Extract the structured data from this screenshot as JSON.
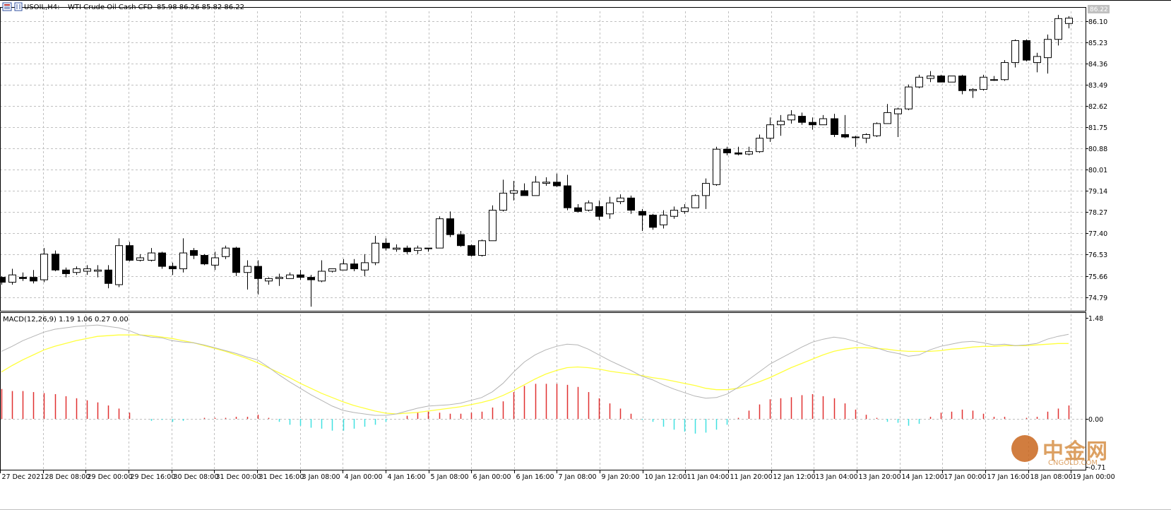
{
  "header": {
    "symbol": "USOIL,H4:",
    "description": "WTI Crude Oil Cash CFD",
    "ohlc": "85.98 86.26 85.82 86.22"
  },
  "current_price_tag": "86.22",
  "macd_label": "MACD(12,26,9) 1.19 1.06 0.27 0.00",
  "watermark": {
    "name": "中金网",
    "domain": "CNGOLD.COM"
  },
  "colors": {
    "background": "#ffffff",
    "grid": "#c0c0c0",
    "candle_outline": "#000000",
    "bull_body": "#ffffff",
    "bear_body": "#000000",
    "macd_line": "#b4b4b4",
    "signal_line": "#ffff3c",
    "hist_positive": "#e03030",
    "hist_negative": "#40e0e0"
  },
  "chart_data": [
    {
      "type": "candlestick",
      "title": "USOIL,H4: WTI Crude Oil Cash CFD",
      "y_ticks": [
        "86.10",
        "85.23",
        "84.36",
        "83.49",
        "82.62",
        "81.75",
        "80.88",
        "80.01",
        "79.14",
        "78.27",
        "77.40",
        "76.53",
        "75.66",
        "74.79"
      ],
      "ylim": [
        74.2,
        86.5
      ],
      "x_ticks": [
        "27 Dec 2021",
        "28 Dec 08:00",
        "29 Dec 00:00",
        "29 Dec 16:00",
        "30 Dec 08:00",
        "31 Dec 00:00",
        "31 Dec 16:00",
        "3 Jan 08:00",
        "4 Jan 00:00",
        "4 Jan 16:00",
        "5 Jan 08:00",
        "6 Jan 00:00",
        "6 Jan 16:00",
        "7 Jan 08:00",
        "9 Jan 20:00",
        "10 Jan 12:00",
        "11 Jan 04:00",
        "11 Jan 20:00",
        "12 Jan 12:00",
        "13 Jan 04:00",
        "13 Jan 20:00",
        "14 Jan 12:00",
        "17 Jan 00:00",
        "17 Jan 16:00",
        "18 Jan 08:00",
        "19 Jan 00:00"
      ],
      "grid": true,
      "ohlc": [
        [
          75.6,
          75.65,
          75.3,
          75.4
        ],
        [
          75.4,
          75.95,
          75.3,
          75.7
        ],
        [
          75.6,
          75.8,
          75.45,
          75.55
        ],
        [
          75.6,
          75.9,
          75.35,
          75.45
        ],
        [
          75.5,
          76.8,
          75.4,
          76.55
        ],
        [
          76.55,
          76.7,
          75.85,
          75.9
        ],
        [
          75.9,
          76.0,
          75.6,
          75.75
        ],
        [
          75.8,
          76.05,
          75.7,
          75.95
        ],
        [
          75.85,
          76.1,
          75.7,
          75.95
        ],
        [
          75.85,
          76.1,
          75.6,
          75.9
        ],
        [
          75.9,
          76.1,
          75.15,
          75.35
        ],
        [
          75.3,
          77.2,
          75.2,
          76.9
        ],
        [
          76.9,
          77.05,
          76.25,
          76.3
        ],
        [
          76.3,
          76.55,
          76.25,
          76.4
        ],
        [
          76.3,
          76.8,
          76.25,
          76.6
        ],
        [
          76.6,
          76.65,
          75.95,
          76.05
        ],
        [
          76.05,
          76.2,
          75.7,
          75.95
        ],
        [
          75.95,
          77.2,
          75.8,
          76.6
        ],
        [
          76.7,
          76.8,
          76.35,
          76.5
        ],
        [
          76.5,
          76.55,
          76.1,
          76.15
        ],
        [
          76.1,
          76.65,
          75.9,
          76.4
        ],
        [
          76.45,
          76.9,
          76.35,
          76.8
        ],
        [
          76.8,
          76.85,
          75.65,
          75.8
        ],
        [
          75.8,
          76.3,
          75.1,
          76.05
        ],
        [
          76.05,
          76.3,
          74.9,
          75.55
        ],
        [
          75.45,
          75.6,
          75.3,
          75.55
        ],
        [
          75.55,
          75.75,
          75.25,
          75.6
        ],
        [
          75.55,
          75.8,
          75.55,
          75.7
        ],
        [
          75.7,
          75.9,
          75.5,
          75.6
        ],
        [
          75.6,
          75.7,
          74.4,
          75.5
        ],
        [
          75.45,
          76.3,
          75.4,
          75.85
        ],
        [
          75.85,
          75.95,
          75.8,
          75.95
        ],
        [
          75.9,
          76.35,
          75.9,
          76.15
        ],
        [
          76.15,
          76.35,
          75.85,
          75.95
        ],
        [
          75.9,
          76.55,
          75.65,
          76.2
        ],
        [
          76.2,
          77.3,
          76.1,
          77.0
        ],
        [
          77.0,
          77.2,
          76.7,
          76.8
        ],
        [
          76.75,
          76.95,
          76.65,
          76.8
        ],
        [
          76.8,
          76.9,
          76.55,
          76.65
        ],
        [
          76.7,
          76.9,
          76.55,
          76.8
        ],
        [
          76.8,
          76.8,
          76.65,
          76.8
        ],
        [
          76.8,
          78.1,
          76.8,
          78.0
        ],
        [
          78.0,
          78.3,
          77.25,
          77.35
        ],
        [
          77.35,
          77.5,
          76.85,
          76.9
        ],
        [
          76.9,
          76.95,
          76.45,
          76.5
        ],
        [
          76.5,
          77.15,
          76.45,
          77.1
        ],
        [
          77.1,
          78.55,
          77.1,
          78.35
        ],
        [
          78.35,
          79.6,
          78.3,
          79.05
        ],
        [
          79.05,
          79.55,
          78.75,
          79.15
        ],
        [
          79.15,
          79.45,
          78.95,
          78.95
        ],
        [
          78.95,
          79.75,
          78.95,
          79.5
        ],
        [
          79.45,
          79.7,
          79.35,
          79.5
        ],
        [
          79.5,
          79.85,
          79.3,
          79.35
        ],
        [
          79.35,
          79.8,
          78.35,
          78.45
        ],
        [
          78.45,
          78.6,
          78.25,
          78.3
        ],
        [
          78.35,
          78.75,
          78.3,
          78.65
        ],
        [
          78.5,
          78.75,
          77.95,
          78.1
        ],
        [
          78.2,
          78.9,
          78.0,
          78.65
        ],
        [
          78.7,
          79.0,
          78.6,
          78.85
        ],
        [
          78.85,
          78.95,
          78.2,
          78.35
        ],
        [
          78.3,
          78.4,
          77.5,
          78.15
        ],
        [
          78.15,
          78.2,
          77.55,
          77.65
        ],
        [
          77.75,
          78.35,
          77.6,
          78.15
        ],
        [
          78.1,
          78.5,
          78.0,
          78.35
        ],
        [
          78.3,
          78.6,
          78.2,
          78.45
        ],
        [
          78.45,
          79.0,
          78.45,
          78.95
        ],
        [
          78.95,
          79.65,
          78.4,
          79.45
        ],
        [
          79.4,
          80.95,
          79.35,
          80.85
        ],
        [
          80.85,
          80.95,
          80.6,
          80.7
        ],
        [
          80.7,
          80.95,
          80.6,
          80.65
        ],
        [
          80.65,
          80.95,
          80.6,
          80.75
        ],
        [
          80.75,
          81.45,
          80.7,
          81.3
        ],
        [
          81.3,
          82.15,
          81.15,
          81.85
        ],
        [
          81.85,
          82.25,
          81.4,
          82.0
        ],
        [
          82.05,
          82.45,
          81.9,
          82.25
        ],
        [
          82.2,
          82.35,
          81.85,
          81.95
        ],
        [
          81.95,
          82.15,
          81.65,
          81.85
        ],
        [
          81.85,
          82.25,
          81.85,
          82.1
        ],
        [
          82.1,
          82.3,
          81.35,
          81.45
        ],
        [
          81.45,
          82.25,
          81.3,
          81.35
        ],
        [
          81.35,
          81.4,
          80.95,
          81.35
        ],
        [
          81.3,
          81.5,
          81.1,
          81.45
        ],
        [
          81.4,
          81.95,
          81.35,
          81.9
        ],
        [
          81.9,
          82.7,
          81.9,
          82.35
        ],
        [
          82.3,
          82.55,
          81.35,
          82.5
        ],
        [
          82.5,
          83.5,
          82.45,
          83.4
        ],
        [
          83.4,
          83.9,
          83.35,
          83.8
        ],
        [
          83.75,
          84.05,
          83.6,
          83.85
        ],
        [
          83.85,
          83.9,
          83.6,
          83.6
        ],
        [
          83.6,
          83.85,
          83.6,
          83.85
        ],
        [
          83.85,
          83.9,
          83.1,
          83.25
        ],
        [
          83.25,
          83.35,
          82.95,
          83.3
        ],
        [
          83.3,
          83.9,
          83.25,
          83.8
        ],
        [
          83.7,
          83.85,
          83.65,
          83.7
        ],
        [
          83.7,
          84.5,
          83.65,
          84.4
        ],
        [
          84.4,
          85.35,
          84.2,
          85.3
        ],
        [
          85.3,
          85.35,
          84.45,
          84.5
        ],
        [
          84.4,
          84.8,
          84.0,
          84.65
        ],
        [
          84.6,
          85.55,
          83.95,
          85.35
        ],
        [
          85.35,
          86.35,
          85.1,
          86.2
        ],
        [
          86.0,
          86.3,
          85.8,
          86.22
        ]
      ]
    },
    {
      "type": "macd",
      "label": "MACD(12,26,9) 1.19 1.06 0.27 0.00",
      "y_ticks": [
        "1.48",
        "0.00",
        "-0.71"
      ],
      "ylim": [
        -0.71,
        1.48
      ],
      "macd": [
        0.95,
        1.02,
        1.1,
        1.16,
        1.22,
        1.26,
        1.28,
        1.3,
        1.31,
        1.32,
        1.3,
        1.28,
        1.24,
        1.18,
        1.15,
        1.14,
        1.1,
        1.08,
        1.07,
        1.04,
        1.0,
        0.96,
        0.92,
        0.87,
        0.83,
        0.73,
        0.62,
        0.52,
        0.43,
        0.34,
        0.26,
        0.18,
        0.12,
        0.09,
        0.07,
        0.05,
        0.05,
        0.07,
        0.11,
        0.15,
        0.18,
        0.19,
        0.2,
        0.22,
        0.26,
        0.3,
        0.38,
        0.5,
        0.66,
        0.8,
        0.9,
        0.97,
        1.02,
        1.05,
        1.04,
        0.98,
        0.9,
        0.82,
        0.75,
        0.68,
        0.6,
        0.55,
        0.48,
        0.42,
        0.37,
        0.32,
        0.29,
        0.3,
        0.35,
        0.44,
        0.55,
        0.66,
        0.77,
        0.85,
        0.93,
        1.01,
        1.08,
        1.12,
        1.15,
        1.13,
        1.09,
        1.04,
        1.0,
        0.95,
        0.92,
        0.88,
        0.9,
        0.97,
        1.02,
        1.05,
        1.08,
        1.09,
        1.07,
        1.04,
        1.05,
        1.03,
        1.04,
        1.06,
        1.12,
        1.16,
        1.19
      ],
      "signal": [
        0.66,
        0.75,
        0.83,
        0.9,
        0.97,
        1.02,
        1.06,
        1.1,
        1.13,
        1.16,
        1.17,
        1.18,
        1.18,
        1.18,
        1.17,
        1.15,
        1.13,
        1.1,
        1.07,
        1.03,
        0.99,
        0.95,
        0.9,
        0.85,
        0.79,
        0.72,
        0.65,
        0.58,
        0.5,
        0.43,
        0.36,
        0.3,
        0.24,
        0.19,
        0.15,
        0.11,
        0.08,
        0.07,
        0.08,
        0.09,
        0.11,
        0.13,
        0.15,
        0.17,
        0.2,
        0.23,
        0.27,
        0.33,
        0.4,
        0.48,
        0.56,
        0.63,
        0.68,
        0.72,
        0.73,
        0.72,
        0.7,
        0.67,
        0.65,
        0.63,
        0.61,
        0.58,
        0.56,
        0.53,
        0.5,
        0.47,
        0.43,
        0.41,
        0.41,
        0.43,
        0.47,
        0.52,
        0.58,
        0.65,
        0.72,
        0.78,
        0.84,
        0.9,
        0.95,
        0.98,
        1.0,
        1.0,
        0.99,
        0.98,
        0.96,
        0.95,
        0.95,
        0.95,
        0.96,
        0.98,
        0.99,
        1.01,
        1.02,
        1.02,
        1.03,
        1.03,
        1.03,
        1.04,
        1.05,
        1.06,
        1.06
      ]
    }
  ]
}
